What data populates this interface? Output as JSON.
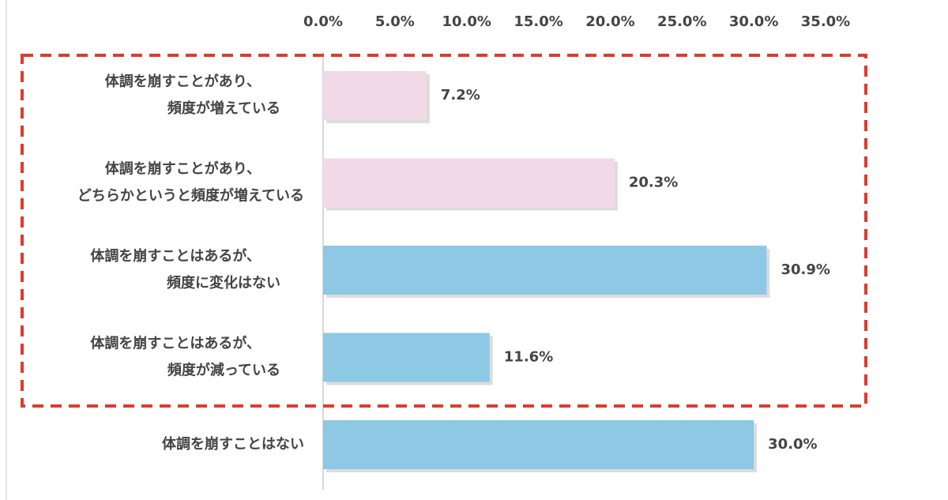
{
  "chart_data": {
    "type": "bar",
    "orientation": "horizontal",
    "categories": [
      "体調を崩すことがあり、\n頻度が増えている",
      "体調を崩すことがあり、\nどちらかというと頻度が増えている",
      "体調を崩すことはあるが、\n頻度に変化はない",
      "体調を崩すことはあるが、\n頻度が減っている",
      "体調を崩すことはない"
    ],
    "values": [
      7.2,
      20.3,
      30.9,
      11.6,
      30.0
    ],
    "value_labels": [
      "7.2%",
      "20.3%",
      "30.9%",
      "11.6%",
      "30.0%"
    ],
    "colors": [
      "#f2d9e7",
      "#f2d9e7",
      "#8dc9e5",
      "#8dc9e5",
      "#8dc9e5"
    ],
    "xlim": [
      0,
      35
    ],
    "xticks": [
      {
        "value": 0,
        "label": "0.0%"
      },
      {
        "value": 5,
        "label": "5.0%"
      },
      {
        "value": 10,
        "label": "10.0%"
      },
      {
        "value": 15,
        "label": "15.0%"
      },
      {
        "value": 20,
        "label": "20.0%"
      },
      {
        "value": 25,
        "label": "25.0%"
      },
      {
        "value": 30,
        "label": "30.0%"
      },
      {
        "value": 35,
        "label": "35.0%"
      }
    ]
  }
}
